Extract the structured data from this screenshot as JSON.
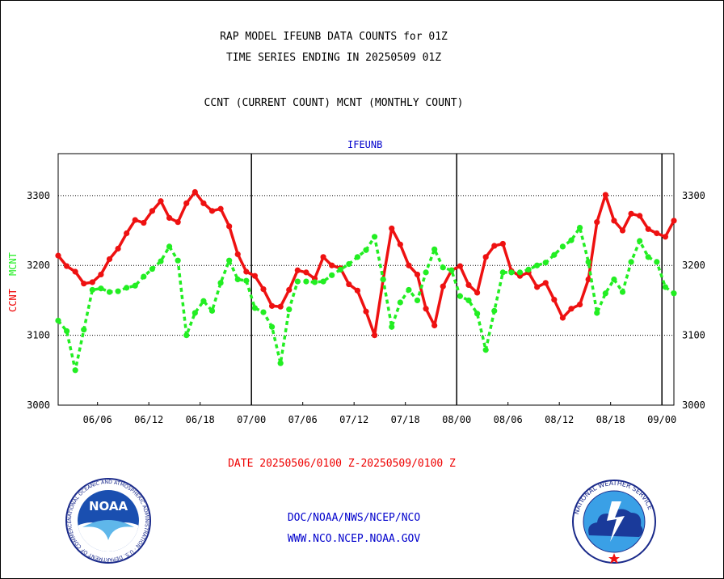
{
  "title_line1": "RAP MODEL IFEUNB DATA COUNTS for 01Z",
  "title_line2": "TIME SERIES ENDING IN 20250509 01Z",
  "subtitle": "CCNT (CURRENT COUNT) MCNT (MONTHLY COUNT)",
  "series_label": "IFEUNB",
  "ylabel_ccnt": "CCNT",
  "ylabel_mcnt": "MCNT",
  "date_range": "DATE 20250506/0100 Z-20250509/0100 Z",
  "footer_line1": "DOC/NOAA/NWS/NCEP/NCO",
  "footer_line2": "WWW.NCO.NCEP.NOAA.GOV",
  "logos": {
    "noaa_text": "NOAA",
    "noaa_ring": "NATIONAL OCEANIC AND ATMOSPHERIC ADMINISTRATION · U.S. DEPARTMENT OF COMMERCE",
    "nws_ring": "NATIONAL WEATHER SERVICE"
  },
  "colors": {
    "ccnt": "#ee1111",
    "mcnt": "#22ee22",
    "axis": "#000000",
    "grid": "#000000"
  },
  "chart_data": {
    "type": "line",
    "xlabel": "",
    "ylabel": "CCNT  MCNT",
    "ylim": [
      3000,
      3360
    ],
    "yticks": [
      3000,
      3100,
      3200,
      3300
    ],
    "x_ticks": [
      {
        "day": 6,
        "label": "06/06"
      },
      {
        "day": 12,
        "label": "06/12"
      },
      {
        "day": 18,
        "label": "06/18"
      },
      {
        "day": 24,
        "label": "07/00"
      },
      {
        "day": 30,
        "label": "07/06"
      },
      {
        "day": 36,
        "label": "07/12"
      },
      {
        "day": 42,
        "label": "07/18"
      },
      {
        "day": 48,
        "label": "08/00"
      },
      {
        "day": 54,
        "label": "08/06"
      },
      {
        "day": 60,
        "label": "08/12"
      },
      {
        "day": 66,
        "label": "08/18"
      },
      {
        "day": 72,
        "label": "09/00"
      }
    ],
    "month_dividers": [
      24,
      48,
      72
    ],
    "xlim": [
      1.4,
      73.4
    ],
    "grid": true,
    "series": [
      {
        "name": "CCNT",
        "color": "#ee1111",
        "x": [
          1.4,
          2.4,
          3.4,
          4.4,
          5.4,
          6.4,
          7.4,
          8.4,
          9.4,
          10.4,
          11.4,
          12.4,
          13.4,
          14.4,
          15.4,
          16.4,
          17.4,
          18.4,
          19.4,
          20.4,
          21.4,
          22.4,
          23.4,
          24.4,
          25.4,
          26.4,
          27.4,
          28.4,
          29.4,
          30.4,
          31.4,
          32.4,
          33.4,
          34.4,
          35.4,
          36.4,
          37.4,
          38.4,
          39.4,
          40.4,
          41.4,
          42.4,
          43.4,
          44.4,
          45.4,
          46.4,
          47.4,
          48.4,
          49.4,
          50.4,
          51.4,
          52.4,
          53.4,
          54.4,
          55.4,
          56.4,
          57.4,
          58.4,
          59.4,
          60.4,
          61.4,
          62.4,
          63.4,
          64.4,
          65.4,
          66.4,
          67.4,
          68.4,
          69.4,
          70.4,
          71.4,
          72.4,
          73.4
        ],
        "y": [
          3214,
          3199,
          3191,
          3174,
          3176,
          3187,
          3209,
          3224,
          3246,
          3265,
          3261,
          3278,
          3292,
          3268,
          3262,
          3289,
          3305,
          3289,
          3278,
          3281,
          3256,
          3216,
          3191,
          3185,
          3166,
          3142,
          3141,
          3165,
          3193,
          3190,
          3181,
          3212,
          3200,
          3196,
          3173,
          3164,
          3134,
          3100,
          3180,
          3253,
          3230,
          3200,
          3187,
          3138,
          3114,
          3170,
          3193,
          3199,
          3172,
          3161,
          3212,
          3228,
          3231,
          3192,
          3185,
          3190,
          3169,
          3175,
          3151,
          3125,
          3138,
          3144,
          3180,
          3262,
          3301,
          3264,
          3250,
          3274,
          3271,
          3252,
          3246,
          3241,
          3264
        ]
      },
      {
        "name": "MCNT",
        "color": "#22ee22",
        "x": [
          1.4,
          2.4,
          3.4,
          4.4,
          5.4,
          6.4,
          7.4,
          8.4,
          9.4,
          10.4,
          11.4,
          12.4,
          13.4,
          14.4,
          15.4,
          16.4,
          17.4,
          18.4,
          19.4,
          20.4,
          21.4,
          22.4,
          23.4,
          24.4,
          25.4,
          26.4,
          27.4,
          28.4,
          29.4,
          30.4,
          31.4,
          32.4,
          33.4,
          34.4,
          35.4,
          36.4,
          37.4,
          38.4,
          39.4,
          40.4,
          41.4,
          42.4,
          43.4,
          44.4,
          45.4,
          46.4,
          47.4,
          48.4,
          49.4,
          50.4,
          51.4,
          52.4,
          53.4,
          54.4,
          55.4,
          56.4,
          57.4,
          58.4,
          59.4,
          60.4,
          61.4,
          62.4,
          63.4,
          64.4,
          65.4,
          66.4,
          67.4,
          68.4,
          69.4,
          70.4,
          71.4,
          72.4,
          73.4
        ],
        "y": [
          3121,
          3106,
          3050,
          3108,
          3165,
          3167,
          3162,
          3163,
          3168,
          3171,
          3184,
          3195,
          3206,
          3227,
          3207,
          3100,
          3132,
          3149,
          3135,
          3175,
          3207,
          3180,
          3178,
          3139,
          3133,
          3112,
          3060,
          3137,
          3177,
          3177,
          3176,
          3177,
          3186,
          3194,
          3202,
          3212,
          3222,
          3241,
          3180,
          3112,
          3147,
          3165,
          3150,
          3190,
          3223,
          3197,
          3193,
          3156,
          3150,
          3131,
          3079,
          3135,
          3190,
          3190,
          3190,
          3194,
          3200,
          3204,
          3215,
          3227,
          3236,
          3254,
          3205,
          3132,
          3160,
          3180,
          3162,
          3205,
          3235,
          3212,
          3205,
          3169,
          3160
        ]
      }
    ]
  }
}
